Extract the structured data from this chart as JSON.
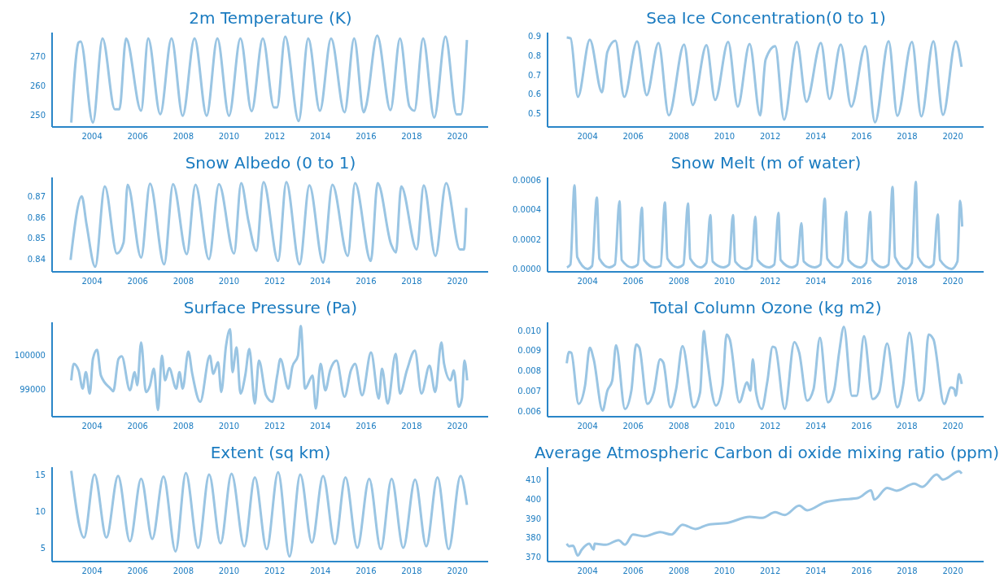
{
  "chart_data": [
    {
      "type": "line",
      "title": "2m Temperature (K)",
      "color": "#9ac5e3",
      "xlim": [
        2002.25,
        2021.35
      ],
      "xticks": [
        2004,
        2006,
        2008,
        2010,
        2012,
        2014,
        2016,
        2018,
        2020
      ],
      "ylim": [
        246,
        278
      ],
      "yticks": [
        250,
        260,
        270
      ],
      "x": [
        2003.09,
        2003.41,
        2003.5,
        2004.04,
        2004.46,
        2005.0,
        2005.2,
        2005.49,
        2006.15,
        2006.46,
        2006.99,
        2007.48,
        2007.97,
        2008.49,
        2009.02,
        2009.49,
        2010.0,
        2010.5,
        2010.99,
        2011.48,
        2011.97,
        2012.1,
        2012.46,
        2013.05,
        2013.47,
        2013.98,
        2014.47,
        2015.06,
        2015.48,
        2015.9,
        2016.0,
        2016.49,
        2017.07,
        2017.49,
        2017.9,
        2018.12,
        2018.5,
        2018.99,
        2019.48,
        2019.97,
        2020.15,
        2020.42
      ],
      "values": [
        247.5,
        274.6,
        275,
        247.5,
        276,
        252,
        252,
        276,
        251.5,
        276,
        250.3,
        276,
        249.8,
        276,
        249.8,
        276,
        249.8,
        276,
        251.3,
        276,
        252.6,
        252.6,
        276.6,
        248,
        276,
        251.5,
        276,
        251,
        276,
        251,
        253,
        277,
        251.7,
        276,
        253,
        251.5,
        276,
        249.2,
        276.6,
        250.3,
        250.3,
        275.5
      ]
    },
    {
      "type": "line",
      "title": "Sea Ice Concentration(0 to 1)",
      "color": "#9ac5e3",
      "xlim": [
        2002.25,
        2021.35
      ],
      "xticks": [
        2004,
        2006,
        2008,
        2010,
        2012,
        2014,
        2016,
        2018,
        2020
      ],
      "ylim": [
        0.43,
        0.92
      ],
      "yticks": [
        0.5,
        0.6,
        0.7,
        0.8,
        0.9
      ],
      "x": [
        2003.09,
        2003.26,
        2003.58,
        2004.1,
        2004.63,
        2004.87,
        2005.22,
        2005.61,
        2006.17,
        2006.59,
        2007.11,
        2007.56,
        2008.23,
        2008.61,
        2009.21,
        2009.59,
        2010.16,
        2010.58,
        2011.1,
        2011.56,
        2011.8,
        2012.22,
        2012.61,
        2013.17,
        2013.59,
        2014.22,
        2014.6,
        2015.09,
        2015.55,
        2016.17,
        2016.59,
        2017.19,
        2017.57,
        2018.21,
        2018.62,
        2019.15,
        2019.57,
        2020.13,
        2020.38
      ],
      "values": [
        0.895,
        0.89,
        0.586,
        0.883,
        0.61,
        0.82,
        0.878,
        0.586,
        0.875,
        0.595,
        0.866,
        0.49,
        0.858,
        0.544,
        0.854,
        0.57,
        0.871,
        0.536,
        0.861,
        0.49,
        0.78,
        0.849,
        0.468,
        0.871,
        0.561,
        0.866,
        0.575,
        0.858,
        0.536,
        0.849,
        0.454,
        0.875,
        0.488,
        0.871,
        0.485,
        0.875,
        0.493,
        0.875,
        0.742
      ]
    },
    {
      "type": "line",
      "title": "Snow Albedo (0 to 1)",
      "color": "#9ac5e3",
      "xlim": [
        2002.25,
        2021.35
      ],
      "xticks": [
        2004,
        2006,
        2008,
        2010,
        2012,
        2014,
        2016,
        2018,
        2020
      ],
      "ylim": [
        0.834,
        0.879
      ],
      "yticks": [
        0.84,
        0.85,
        0.86,
        0.87
      ],
      "x": [
        2003.06,
        2003.55,
        2003.76,
        2004.14,
        2004.56,
        2005.09,
        2005.38,
        2005.56,
        2006.15,
        2006.54,
        2007.16,
        2007.55,
        2008.15,
        2008.53,
        2009.12,
        2009.56,
        2010.22,
        2010.53,
        2010.85,
        2011.2,
        2011.51,
        2012.15,
        2012.51,
        2013.09,
        2013.52,
        2014.12,
        2014.53,
        2015.2,
        2015.52,
        2016.21,
        2016.51,
        2017.1,
        2017.31,
        2017.54,
        2018.22,
        2018.53,
        2019.04,
        2019.51,
        2020.11,
        2020.29,
        2020.39
      ],
      "values": [
        0.8397,
        0.87,
        0.8566,
        0.8364,
        0.8747,
        0.8427,
        0.8479,
        0.8755,
        0.8408,
        0.876,
        0.8376,
        0.8758,
        0.8424,
        0.8755,
        0.84,
        0.8758,
        0.8427,
        0.8763,
        0.8582,
        0.844,
        0.8768,
        0.8392,
        0.8768,
        0.8376,
        0.8752,
        0.8384,
        0.8755,
        0.8416,
        0.8763,
        0.8392,
        0.8763,
        0.8471,
        0.8432,
        0.8747,
        0.8447,
        0.8752,
        0.8416,
        0.8763,
        0.8447,
        0.8447,
        0.8645
      ]
    },
    {
      "type": "line",
      "title": "Snow Melt (m of water)",
      "color": "#9ac5e3",
      "xlim": [
        2002.25,
        2021.35
      ],
      "xticks": [
        2004,
        2006,
        2008,
        2010,
        2012,
        2014,
        2016,
        2018,
        2020
      ],
      "ylim": [
        -2e-05,
        0.00062
      ],
      "yticks": [
        {
          "value": 0,
          "label": "0.0000"
        },
        {
          "value": 0.0002,
          "label": "0.0002"
        },
        {
          "value": 0.0004,
          "label": "0.0004"
        },
        {
          "value": 0.0006,
          "label": "0.0006"
        }
      ],
      "x": [
        2003.1,
        2003.25,
        2003.43,
        2003.55,
        2004.0,
        2004.2,
        2004.41,
        2004.52,
        2004.95,
        2005.2,
        2005.4,
        2005.5,
        2005.95,
        2006.2,
        2006.38,
        2006.48,
        2006.95,
        2007.2,
        2007.39,
        2007.5,
        2007.95,
        2008.2,
        2008.4,
        2008.5,
        2008.95,
        2009.2,
        2009.38,
        2009.48,
        2009.95,
        2010.2,
        2010.37,
        2010.47,
        2010.95,
        2011.18,
        2011.35,
        2011.45,
        2011.95,
        2012.18,
        2012.36,
        2012.46,
        2012.95,
        2013.18,
        2013.37,
        2013.47,
        2013.95,
        2014.2,
        2014.39,
        2014.5,
        2014.95,
        2015.15,
        2015.33,
        2015.43,
        2015.95,
        2016.2,
        2016.38,
        2016.48,
        2016.95,
        2017.18,
        2017.36,
        2017.47,
        2017.95,
        2018.2,
        2018.38,
        2018.48,
        2018.95,
        2019.15,
        2019.34,
        2019.44,
        2019.95,
        2020.2,
        2020.32,
        2020.41
      ],
      "values": [
        1e-05,
        3e-05,
        0.000566,
        8e-05,
        0.0,
        2e-05,
        0.000484,
        7e-05,
        1e-05,
        3e-05,
        0.000459,
        6e-05,
        1e-05,
        3e-05,
        0.000416,
        6e-05,
        1e-05,
        2e-05,
        0.00045,
        7e-05,
        1e-05,
        3e-05,
        0.000443,
        7e-05,
        1e-05,
        4e-05,
        0.000365,
        5e-05,
        1e-05,
        3e-05,
        0.000365,
        5e-05,
        0.0,
        2e-05,
        0.000354,
        6e-05,
        1e-05,
        3e-05,
        0.00038,
        6e-05,
        1e-05,
        3e-05,
        0.000309,
        5e-05,
        1e-05,
        3e-05,
        0.000477,
        7e-05,
        1e-05,
        4e-05,
        0.000387,
        6e-05,
        1e-05,
        4e-05,
        0.000387,
        6e-05,
        1e-05,
        3e-05,
        0.000555,
        8e-05,
        0.0,
        4e-05,
        0.000589,
        8e-05,
        1e-05,
        3e-05,
        0.000369,
        6e-05,
        0.0,
        5e-05,
        0.000461,
        0.000287
      ]
    },
    {
      "type": "line",
      "title": "Surface Pressure (Pa)",
      "color": "#9ac5e3",
      "xlim": [
        2002.25,
        2021.35
      ],
      "xticks": [
        2004,
        2006,
        2008,
        2010,
        2012,
        2014,
        2016,
        2018,
        2020
      ],
      "ylim": [
        98200,
        100950
      ],
      "yticks": [
        99000,
        100000
      ],
      "x": [
        2003.09,
        2003.2,
        2003.41,
        2003.59,
        2003.73,
        2003.9,
        2004.04,
        2004.22,
        2004.39,
        2004.81,
        2004.93,
        2005.16,
        2005.3,
        2005.66,
        2005.87,
        2005.98,
        2006.15,
        2006.36,
        2006.54,
        2006.71,
        2006.89,
        2007.06,
        2007.2,
        2007.38,
        2007.69,
        2007.83,
        2007.97,
        2008.22,
        2008.39,
        2008.74,
        2009.16,
        2009.31,
        2009.52,
        2009.66,
        2009.87,
        2010.05,
        2010.15,
        2010.33,
        2010.5,
        2010.71,
        2010.89,
        2011.13,
        2011.31,
        2011.62,
        2011.9,
        2012.11,
        2012.25,
        2012.6,
        2012.77,
        2013.02,
        2013.14,
        2013.33,
        2013.66,
        2013.8,
        2014.01,
        2014.22,
        2014.43,
        2014.71,
        2015.06,
        2015.34,
        2015.52,
        2015.83,
        2016.22,
        2016.56,
        2016.7,
        2016.95,
        2017.3,
        2017.49,
        2017.79,
        2018.14,
        2018.43,
        2018.78,
        2019.03,
        2019.3,
        2019.42,
        2019.7,
        2019.84,
        2020.06,
        2020.2,
        2020.31,
        2020.43
      ],
      "values": [
        99260,
        99740,
        99550,
        99020,
        99500,
        98875,
        99885,
        100150,
        99400,
        99020,
        98940,
        99885,
        99960,
        98970,
        99500,
        99115,
        100365,
        98920,
        99115,
        99600,
        98395,
        99980,
        99260,
        99615,
        99020,
        99500,
        99020,
        100095,
        99450,
        98635,
        99980,
        99450,
        99790,
        98920,
        100270,
        100750,
        99500,
        100220,
        98875,
        99400,
        100175,
        98585,
        99835,
        98825,
        98635,
        99400,
        99885,
        99020,
        99645,
        99980,
        100846,
        99020,
        99400,
        98440,
        99740,
        98970,
        99550,
        99835,
        98780,
        99550,
        99740,
        98825,
        100075,
        98730,
        99600,
        98585,
        100030,
        98875,
        99550,
        100125,
        98875,
        99690,
        98920,
        100365,
        99740,
        99260,
        99550,
        98490,
        98730,
        99835,
        99260
      ]
    },
    {
      "type": "line",
      "title": "Total Column Ozone (kg m2)",
      "color": "#9ac5e3",
      "xlim": [
        2002.25,
        2021.35
      ],
      "xticks": [
        2004,
        2006,
        2008,
        2010,
        2012,
        2014,
        2016,
        2018,
        2020
      ],
      "ylim": [
        0.00575,
        0.0104
      ],
      "yticks": [
        0.006,
        0.007,
        0.008,
        0.009,
        {
          "value": 0.01,
          "label": "0.010"
        }
      ],
      "x": [
        2003.09,
        2003.19,
        2003.29,
        2003.61,
        2003.89,
        2004.1,
        2004.27,
        2004.66,
        2004.87,
        2005.08,
        2005.25,
        2005.64,
        2005.92,
        2006.13,
        2006.27,
        2006.62,
        2006.9,
        2007.18,
        2007.32,
        2007.63,
        2007.88,
        2008.16,
        2008.65,
        2008.93,
        2009.1,
        2009.17,
        2009.63,
        2009.91,
        2010.09,
        2010.23,
        2010.65,
        2010.99,
        2011.13,
        2011.24,
        2011.38,
        2011.63,
        2011.87,
        2012.11,
        2012.22,
        2012.64,
        2013.06,
        2013.27,
        2013.62,
        2013.9,
        2014.18,
        2014.53,
        2014.81,
        2015.02,
        2015.23,
        2015.58,
        2015.79,
        2016.11,
        2016.49,
        2016.77,
        2017.12,
        2017.57,
        2017.82,
        2018.1,
        2018.52,
        2018.71,
        2018.94,
        2019.15,
        2019.62,
        2019.92,
        2020.06,
        2020.13,
        2020.27,
        2020.39
      ],
      "values": [
        0.00838,
        0.00894,
        0.0089,
        0.00638,
        0.00727,
        0.00915,
        0.00858,
        0.00605,
        0.00703,
        0.00752,
        0.00927,
        0.00613,
        0.00703,
        0.00931,
        0.00915,
        0.00638,
        0.00695,
        0.00858,
        0.00842,
        0.00621,
        0.00711,
        0.00923,
        0.00621,
        0.00695,
        0.00997,
        0.00931,
        0.0063,
        0.00727,
        0.0098,
        0.00956,
        0.00646,
        0.00744,
        0.00703,
        0.00858,
        0.00695,
        0.00613,
        0.00744,
        0.0092,
        0.00915,
        0.00613,
        0.00943,
        0.00891,
        0.00654,
        0.00711,
        0.00964,
        0.00646,
        0.00711,
        0.00891,
        0.01018,
        0.00678,
        0.00678,
        0.00972,
        0.00662,
        0.00695,
        0.00936,
        0.00621,
        0.00727,
        0.00989,
        0.00654,
        0.00695,
        0.0098,
        0.00956,
        0.00638,
        0.00719,
        0.00711,
        0.00678,
        0.00784,
        0.00736
      ]
    },
    {
      "type": "line",
      "title": "Extent (sq km)",
      "color": "#9ac5e3",
      "xlim": [
        2002.25,
        2021.35
      ],
      "xticks": [
        2004,
        2006,
        2008,
        2010,
        2012,
        2014,
        2016,
        2018,
        2020
      ],
      "ylim": [
        3.1,
        16.1
      ],
      "yticks": [
        5,
        10,
        15
      ],
      "x": [
        2003.09,
        2003.65,
        2004.11,
        2004.63,
        2005.14,
        2005.66,
        2006.15,
        2006.64,
        2007.13,
        2007.66,
        2008.11,
        2008.65,
        2009.13,
        2009.63,
        2010.11,
        2010.67,
        2011.13,
        2011.65,
        2012.15,
        2012.65,
        2013.12,
        2013.63,
        2014.12,
        2014.64,
        2015.1,
        2015.62,
        2016.14,
        2016.65,
        2017.12,
        2017.63,
        2018.15,
        2018.64,
        2019.13,
        2019.62,
        2020.14,
        2020.42
      ],
      "values": [
        15.6,
        6.4,
        15.1,
        6.4,
        14.9,
        5.9,
        14.5,
        6.2,
        14.8,
        4.5,
        15.3,
        5.0,
        15.1,
        5.6,
        15.2,
        5.2,
        14.7,
        4.8,
        15.4,
        3.8,
        15.1,
        5.7,
        14.9,
        5.5,
        14.7,
        5.0,
        14.5,
        4.8,
        14.5,
        5.0,
        14.4,
        5.2,
        14.7,
        4.8,
        14.9,
        10.9
      ]
    },
    {
      "type": "line",
      "title": "Average Atmospheric Carbon di oxide mixing ratio (ppm)",
      "color": "#9ac5e3",
      "xlim": [
        2002.25,
        2021.35
      ],
      "xticks": [
        2004,
        2006,
        2008,
        2010,
        2012,
        2014,
        2016,
        2018,
        2020
      ],
      "ylim": [
        367.8,
        416.4
      ],
      "yticks": [
        370,
        380,
        390,
        400,
        410
      ],
      "x": [
        2003.09,
        2003.19,
        2003.37,
        2003.57,
        2003.75,
        2004.07,
        2004.27,
        2004.31,
        2004.8,
        2005.36,
        2005.64,
        2005.99,
        2006.48,
        2007.18,
        2007.67,
        2008.16,
        2008.72,
        2009.28,
        2010.12,
        2011.1,
        2011.66,
        2012.22,
        2012.64,
        2013.27,
        2013.62,
        2014.39,
        2015.16,
        2015.86,
        2016.42,
        2016.56,
        2017.12,
        2017.54,
        2018.31,
        2018.66,
        2019.29,
        2019.57,
        2020.27,
        2020.39
      ],
      "values": [
        377,
        375.7,
        376,
        370.9,
        374,
        377,
        374,
        377,
        376.5,
        378.8,
        376.5,
        381.7,
        380.8,
        383,
        381.7,
        386.8,
        384.6,
        386.8,
        387.7,
        390.8,
        390.3,
        393.2,
        391.8,
        396.6,
        394.2,
        398.3,
        399.7,
        400.6,
        404.5,
        399.7,
        405.7,
        404.3,
        407.9,
        406.2,
        412.6,
        410,
        414.3,
        413.1
      ]
    }
  ]
}
